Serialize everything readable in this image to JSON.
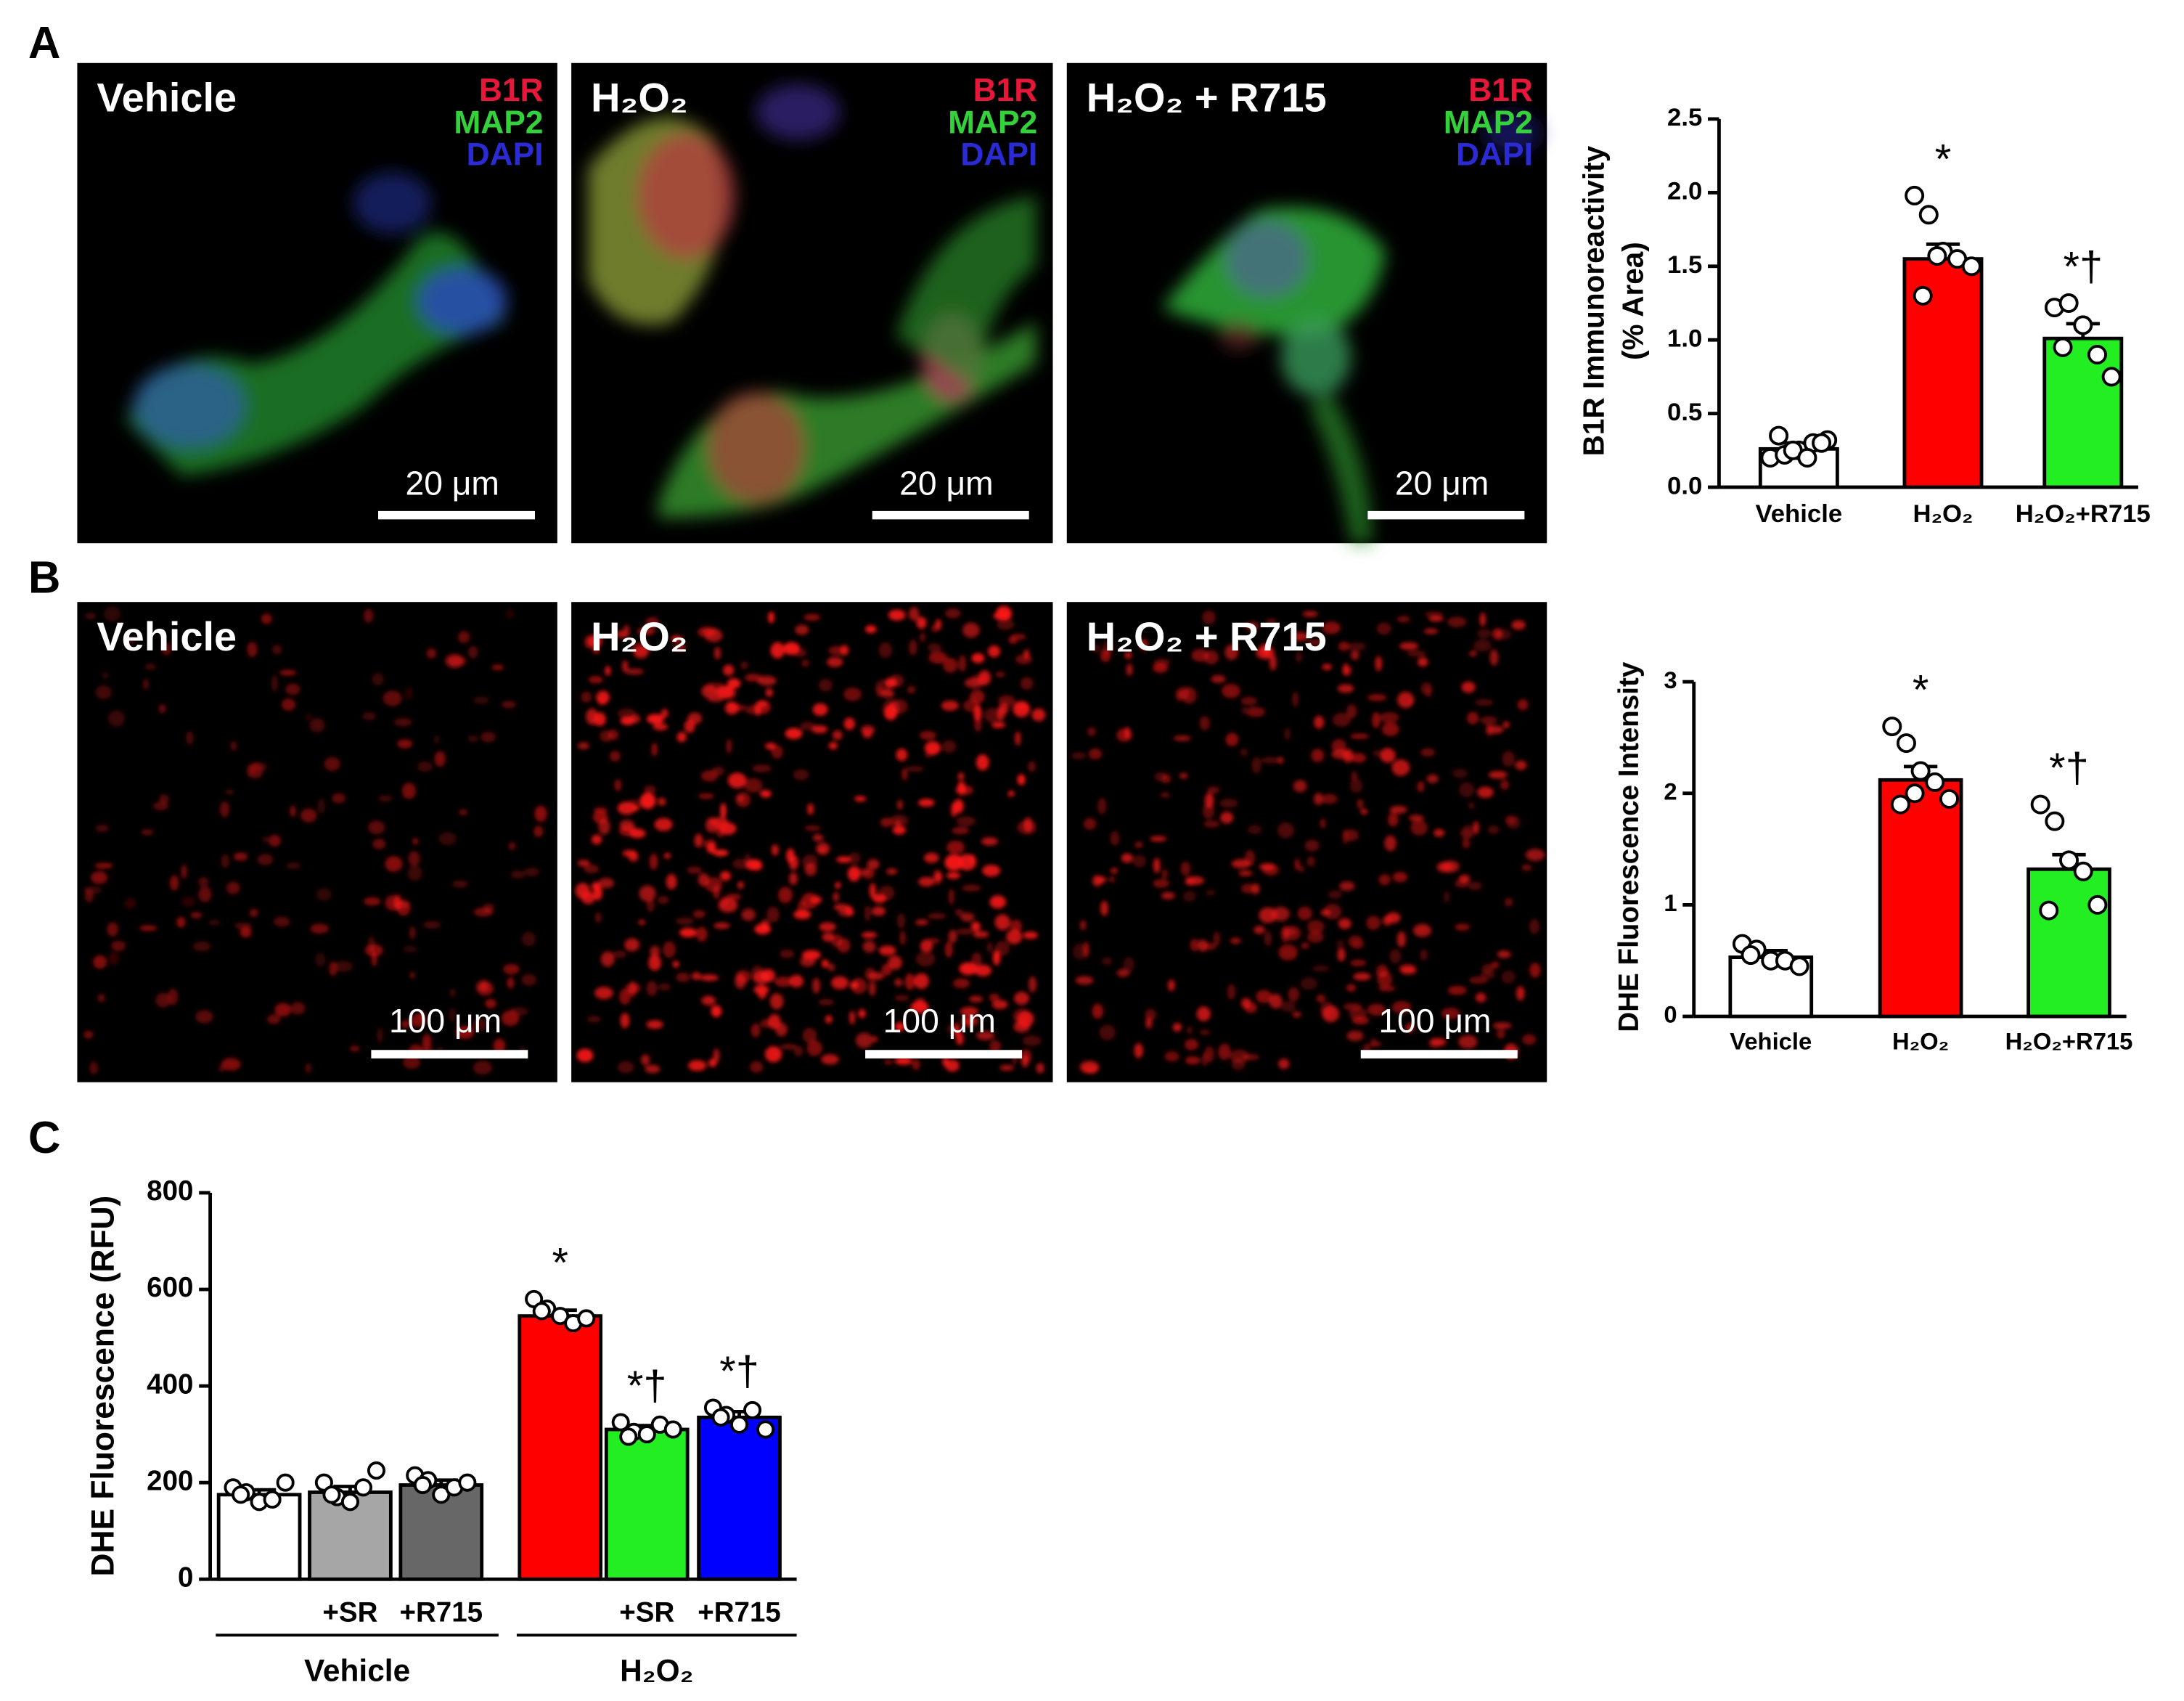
{
  "panel_labels": [
    "A",
    "B",
    "C"
  ],
  "images_a": [
    {
      "label": "Vehicle",
      "channels": [
        "B1R",
        "MAP2",
        "DAPI"
      ],
      "scale_bar": "20 μm"
    },
    {
      "label": "H₂O₂",
      "channels": [
        "B1R",
        "MAP2",
        "DAPI"
      ],
      "scale_bar": "20 μm"
    },
    {
      "label": "H₂O₂ + R715",
      "channels": [
        "B1R",
        "MAP2",
        "DAPI"
      ],
      "scale_bar": "20 μm"
    }
  ],
  "images_b": [
    {
      "label": "Vehicle",
      "scale_bar": "100 μm"
    },
    {
      "label": "H₂O₂",
      "scale_bar": "100 μm"
    },
    {
      "label": "H₂O₂ + R715",
      "scale_bar": "100 μm"
    }
  ],
  "chart_data": [
    {
      "type": "bar",
      "ylabel": [
        "B1R Immunoreactivity",
        "(% Area)"
      ],
      "categories": [
        "Vehicle",
        "H₂O₂",
        "H₂O₂+R715"
      ],
      "values": [
        0.26,
        1.55,
        1.01
      ],
      "errors": [
        0.04,
        0.1,
        0.1
      ],
      "colors": [
        "#ffffff",
        "#ff0000",
        "#22ee22"
      ],
      "points": [
        [
          0.2,
          0.22,
          0.25,
          0.3,
          0.32,
          0.35,
          0.25,
          0.2,
          0.3
        ],
        [
          1.98,
          1.85,
          1.6,
          1.55,
          1.5,
          1.3,
          1.57
        ],
        [
          1.22,
          1.25,
          1.1,
          0.9,
          0.75,
          0.95
        ]
      ],
      "annotations": [
        null,
        "*",
        "*†"
      ],
      "ylim": [
        0,
        2.5
      ],
      "yticks": [
        {
          "value": 0,
          "label": "0.0"
        },
        0.5,
        {
          "value": 1,
          "label": "1.0"
        },
        1.5,
        {
          "value": 2,
          "label": "2.0"
        },
        2.5
      ]
    },
    {
      "type": "bar",
      "ylabel": "DHE Fluorescence Intensity",
      "categories": [
        "Vehicle",
        "H₂O₂",
        "H₂O₂+R715"
      ],
      "values": [
        0.53,
        2.12,
        1.32
      ],
      "errors": [
        0.06,
        0.12,
        0.13
      ],
      "colors": [
        "#ffffff",
        "#ff0000",
        "#22ee22"
      ],
      "points": [
        [
          0.65,
          0.6,
          0.5,
          0.5,
          0.45,
          0.55
        ],
        [
          2.6,
          2.45,
          2.2,
          2.1,
          1.95,
          1.9,
          2.0
        ],
        [
          1.9,
          1.75,
          1.4,
          1.3,
          1.0,
          0.95
        ]
      ],
      "annotations": [
        null,
        "*",
        "*†"
      ],
      "ylim": [
        0,
        3
      ],
      "yticks": [
        0,
        1,
        2,
        3
      ]
    },
    {
      "type": "bar",
      "ylabel": "DHE Fluorescence (RFU)",
      "categories": [
        null,
        "+SR",
        "+R715",
        null,
        "+SR",
        "+R715"
      ],
      "group_labels": [
        "Vehicle",
        "H₂O₂"
      ],
      "values": [
        175,
        180,
        195,
        545,
        310,
        335
      ],
      "errors": [
        10,
        12,
        10,
        12,
        8,
        12
      ],
      "colors": [
        "#ffffff",
        "#a6a6a6",
        "#676767",
        "#ff0000",
        "#22ee22",
        "#0000ff"
      ],
      "points": [
        [
          190,
          180,
          160,
          165,
          200,
          175
        ],
        [
          200,
          170,
          160,
          190,
          225,
          175
        ],
        [
          215,
          205,
          175,
          190,
          200,
          195
        ],
        [
          580,
          560,
          545,
          530,
          540,
          555
        ],
        [
          325,
          305,
          300,
          320,
          310,
          295
        ],
        [
          355,
          340,
          320,
          350,
          310,
          335
        ]
      ],
      "annotations": [
        null,
        null,
        null,
        "*",
        "*†",
        "*†"
      ],
      "ylim": [
        0,
        800
      ],
      "yticks": [
        0,
        200,
        400,
        600,
        800
      ]
    }
  ]
}
